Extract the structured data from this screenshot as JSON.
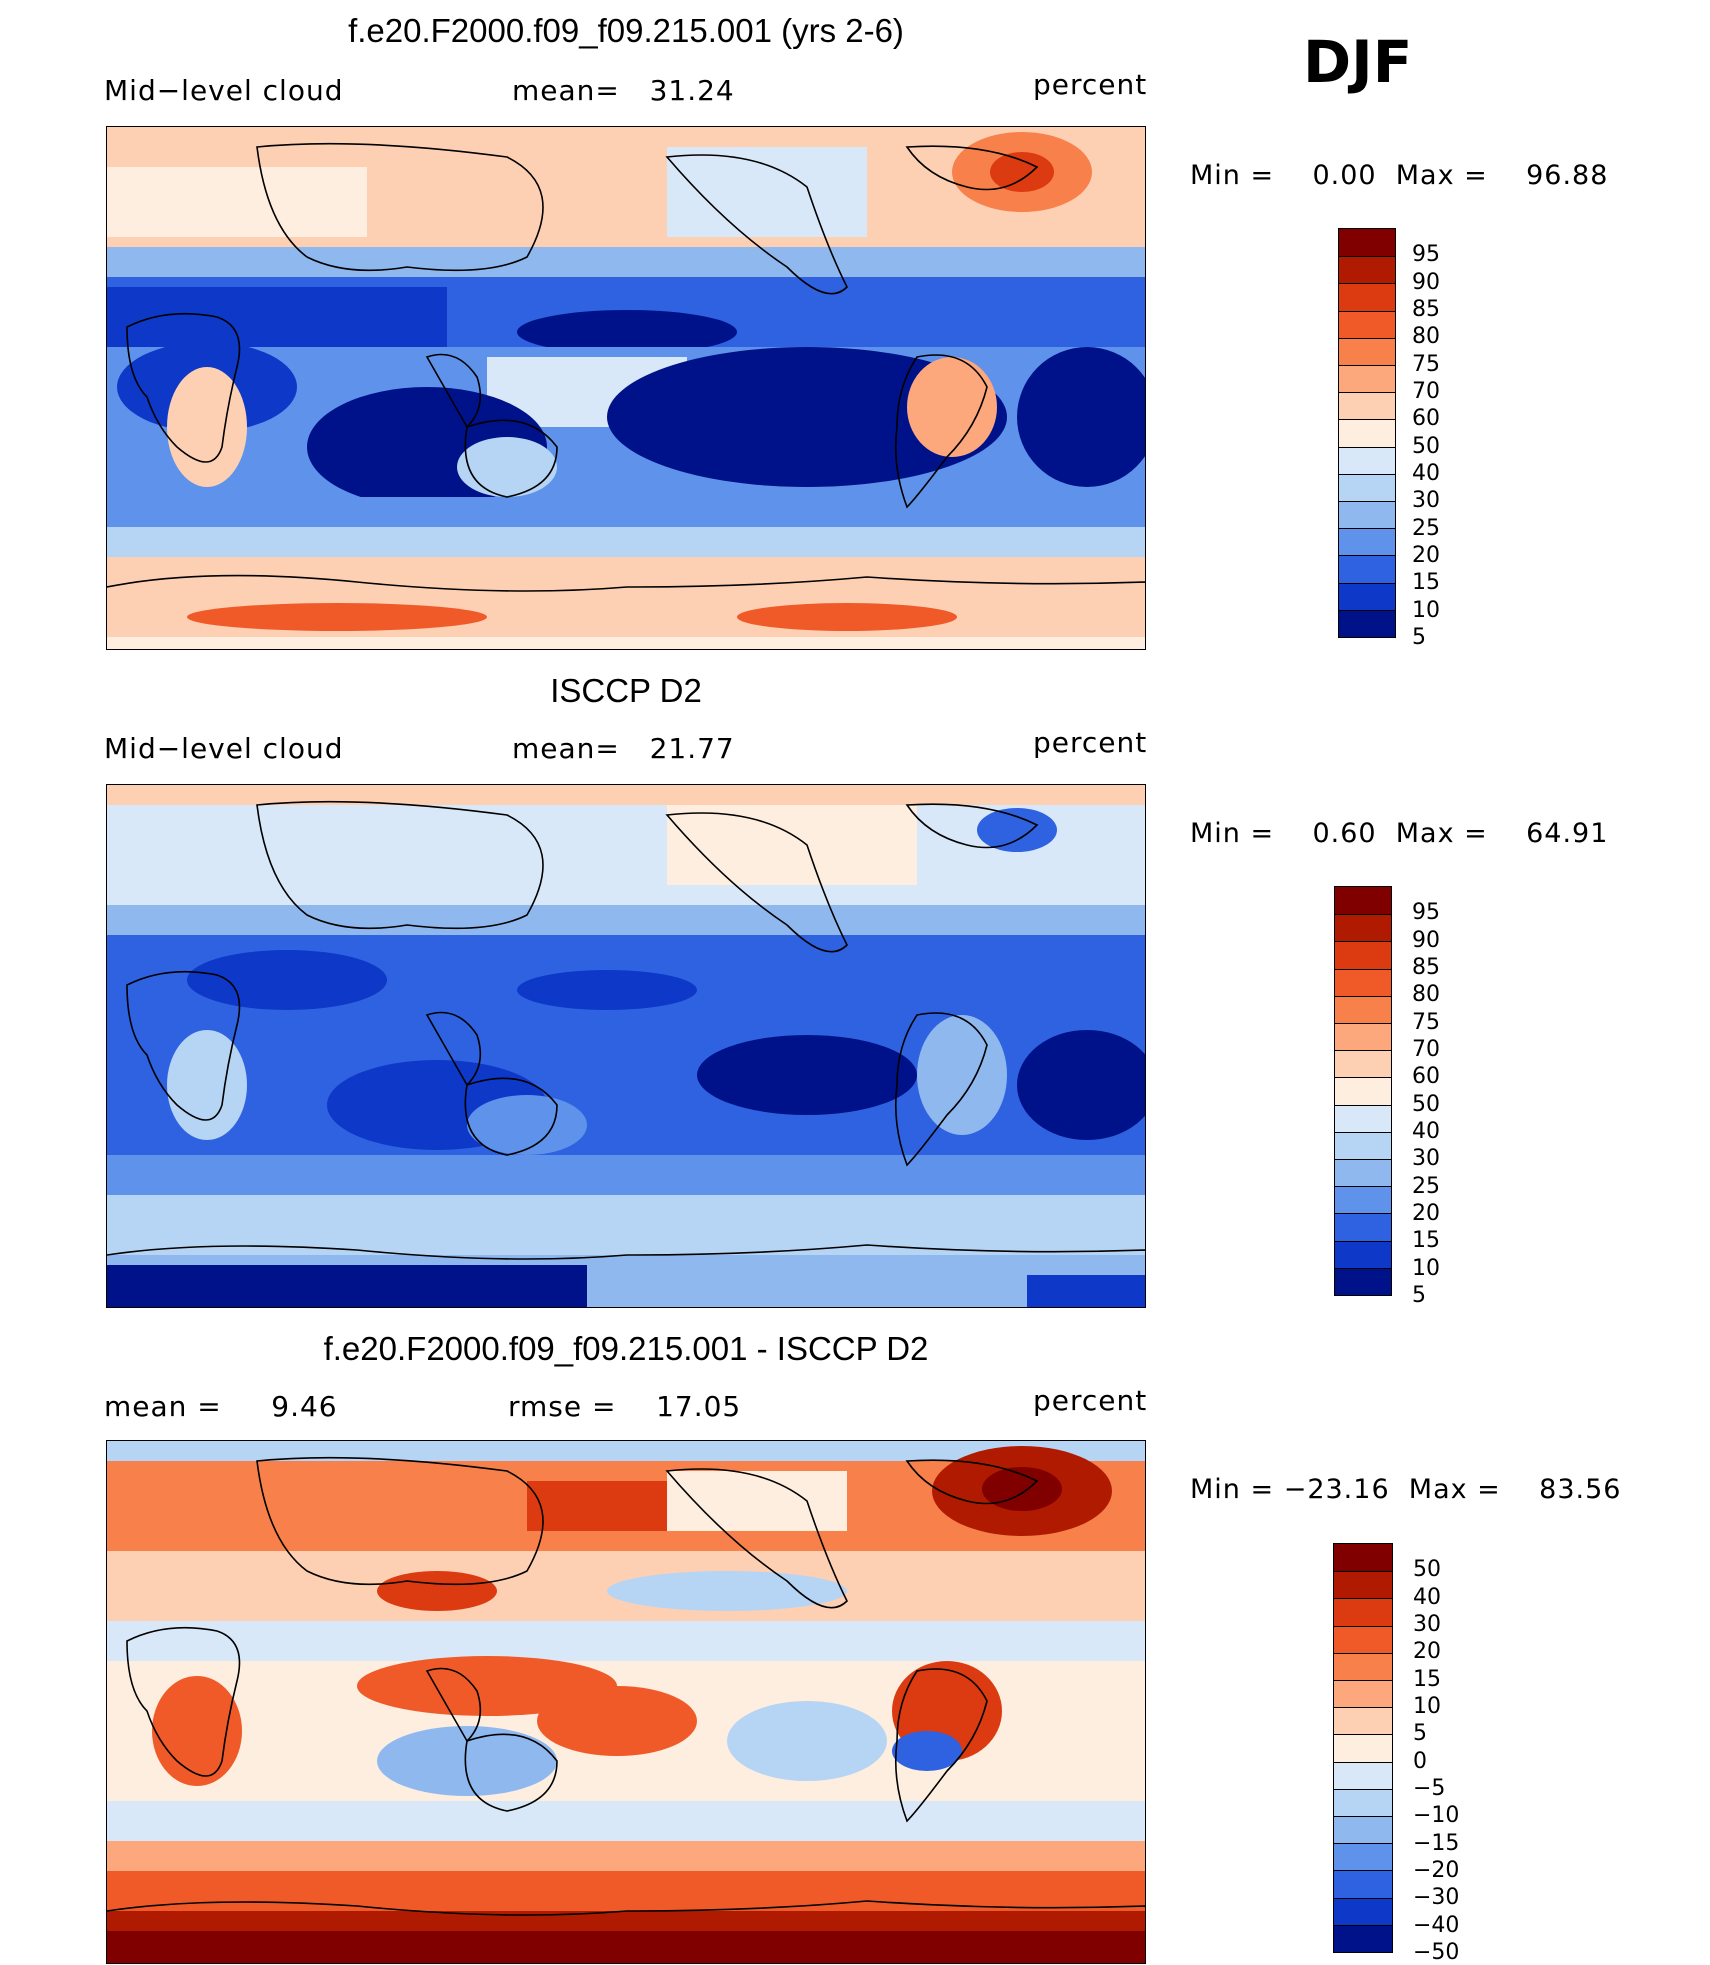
{
  "season": "DJF",
  "panels": [
    {
      "id": "model",
      "title": "f.e20.F2000.f09_f09.215.001 (yrs 2-6)",
      "left_label": "Mid−level cloud",
      "center_label": "mean=   31.24",
      "right_label": "percent",
      "minmax": "Min =    0.00  Max =    96.88",
      "colorbar_ticks": [
        "95",
        "90",
        "85",
        "80",
        "75",
        "70",
        "60",
        "50",
        "40",
        "30",
        "25",
        "20",
        "15",
        "10",
        "5"
      ]
    },
    {
      "id": "obs",
      "title": "ISCCP D2",
      "left_label": "Mid−level cloud",
      "center_label": "mean=   21.77",
      "right_label": "percent",
      "minmax": "Min =    0.60  Max =    64.91",
      "colorbar_ticks": [
        "95",
        "90",
        "85",
        "80",
        "75",
        "70",
        "60",
        "50",
        "40",
        "30",
        "25",
        "20",
        "15",
        "10",
        "5"
      ]
    },
    {
      "id": "diff",
      "title": "f.e20.F2000.f09_f09.215.001 - ISCCP D2",
      "left_label": "mean =     9.46",
      "center_label": "rmse =    17.05",
      "right_label": "percent",
      "minmax": "Min = −23.16  Max =    83.56",
      "colorbar_ticks": [
        "50",
        "40",
        "30",
        "20",
        "15",
        "10",
        "5",
        "0",
        "−5",
        "−10",
        "−15",
        "−20",
        "−30",
        "−40",
        "−50"
      ]
    }
  ],
  "colors": {
    "sequential": [
      "#800000",
      "#b01a00",
      "#dc3a10",
      "#f05a28",
      "#f8804a",
      "#fca77c",
      "#fdd0b4",
      "#fdeee0",
      "#d8e8f8",
      "#b6d4f4",
      "#8fb8ef",
      "#5f92ea",
      "#2f62e0",
      "#0d38c8",
      "#00128a"
    ],
    "diverging": [
      "#800000",
      "#b01a00",
      "#dc3a10",
      "#f05a28",
      "#f8804a",
      "#fca77c",
      "#fdd0b4",
      "#fdeee0",
      "#d8e8f8",
      "#b6d4f4",
      "#8fb8ef",
      "#5f92ea",
      "#2f62e0",
      "#0d38c8",
      "#00128a"
    ]
  }
}
